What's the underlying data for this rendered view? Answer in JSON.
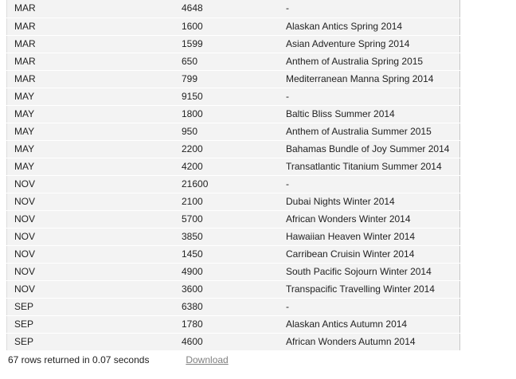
{
  "table": {
    "rows": [
      [
        "MAR",
        "4648",
        "-"
      ],
      [
        "MAR",
        "1600",
        "Alaskan Antics Spring 2014"
      ],
      [
        "MAR",
        "1599",
        "Asian Adventure Spring 2014"
      ],
      [
        "MAR",
        "650",
        "Anthem of Australia Spring 2015"
      ],
      [
        "MAR",
        "799",
        "Mediterranean Manna Spring 2014"
      ],
      [
        "MAY",
        "9150",
        "-"
      ],
      [
        "MAY",
        "1800",
        "Baltic Bliss Summer 2014"
      ],
      [
        "MAY",
        "950",
        "Anthem of Australia Summer 2015"
      ],
      [
        "MAY",
        "2200",
        "Bahamas Bundle of Joy Summer 2014"
      ],
      [
        "MAY",
        "4200",
        "Transatlantic Titanium Summer 2014"
      ],
      [
        "NOV",
        "21600",
        "-"
      ],
      [
        "NOV",
        "2100",
        "Dubai Nights Winter 2014"
      ],
      [
        "NOV",
        "5700",
        "African Wonders Winter 2014"
      ],
      [
        "NOV",
        "3850",
        "Hawaiian Heaven Winter 2014"
      ],
      [
        "NOV",
        "1450",
        "Carribean Cruisin Winter 2014"
      ],
      [
        "NOV",
        "4900",
        "South Pacific Sojourn Winter 2014"
      ],
      [
        "NOV",
        "3600",
        "Transpacific Travelling Winter 2014"
      ],
      [
        "SEP",
        "6380",
        "-"
      ],
      [
        "SEP",
        "1780",
        "Alaskan Antics Autumn 2014"
      ],
      [
        "SEP",
        "4600",
        "African Wonders Autumn 2014"
      ]
    ]
  },
  "footer": {
    "summary": "67 rows returned in 0.07 seconds",
    "download_label": "Download"
  }
}
